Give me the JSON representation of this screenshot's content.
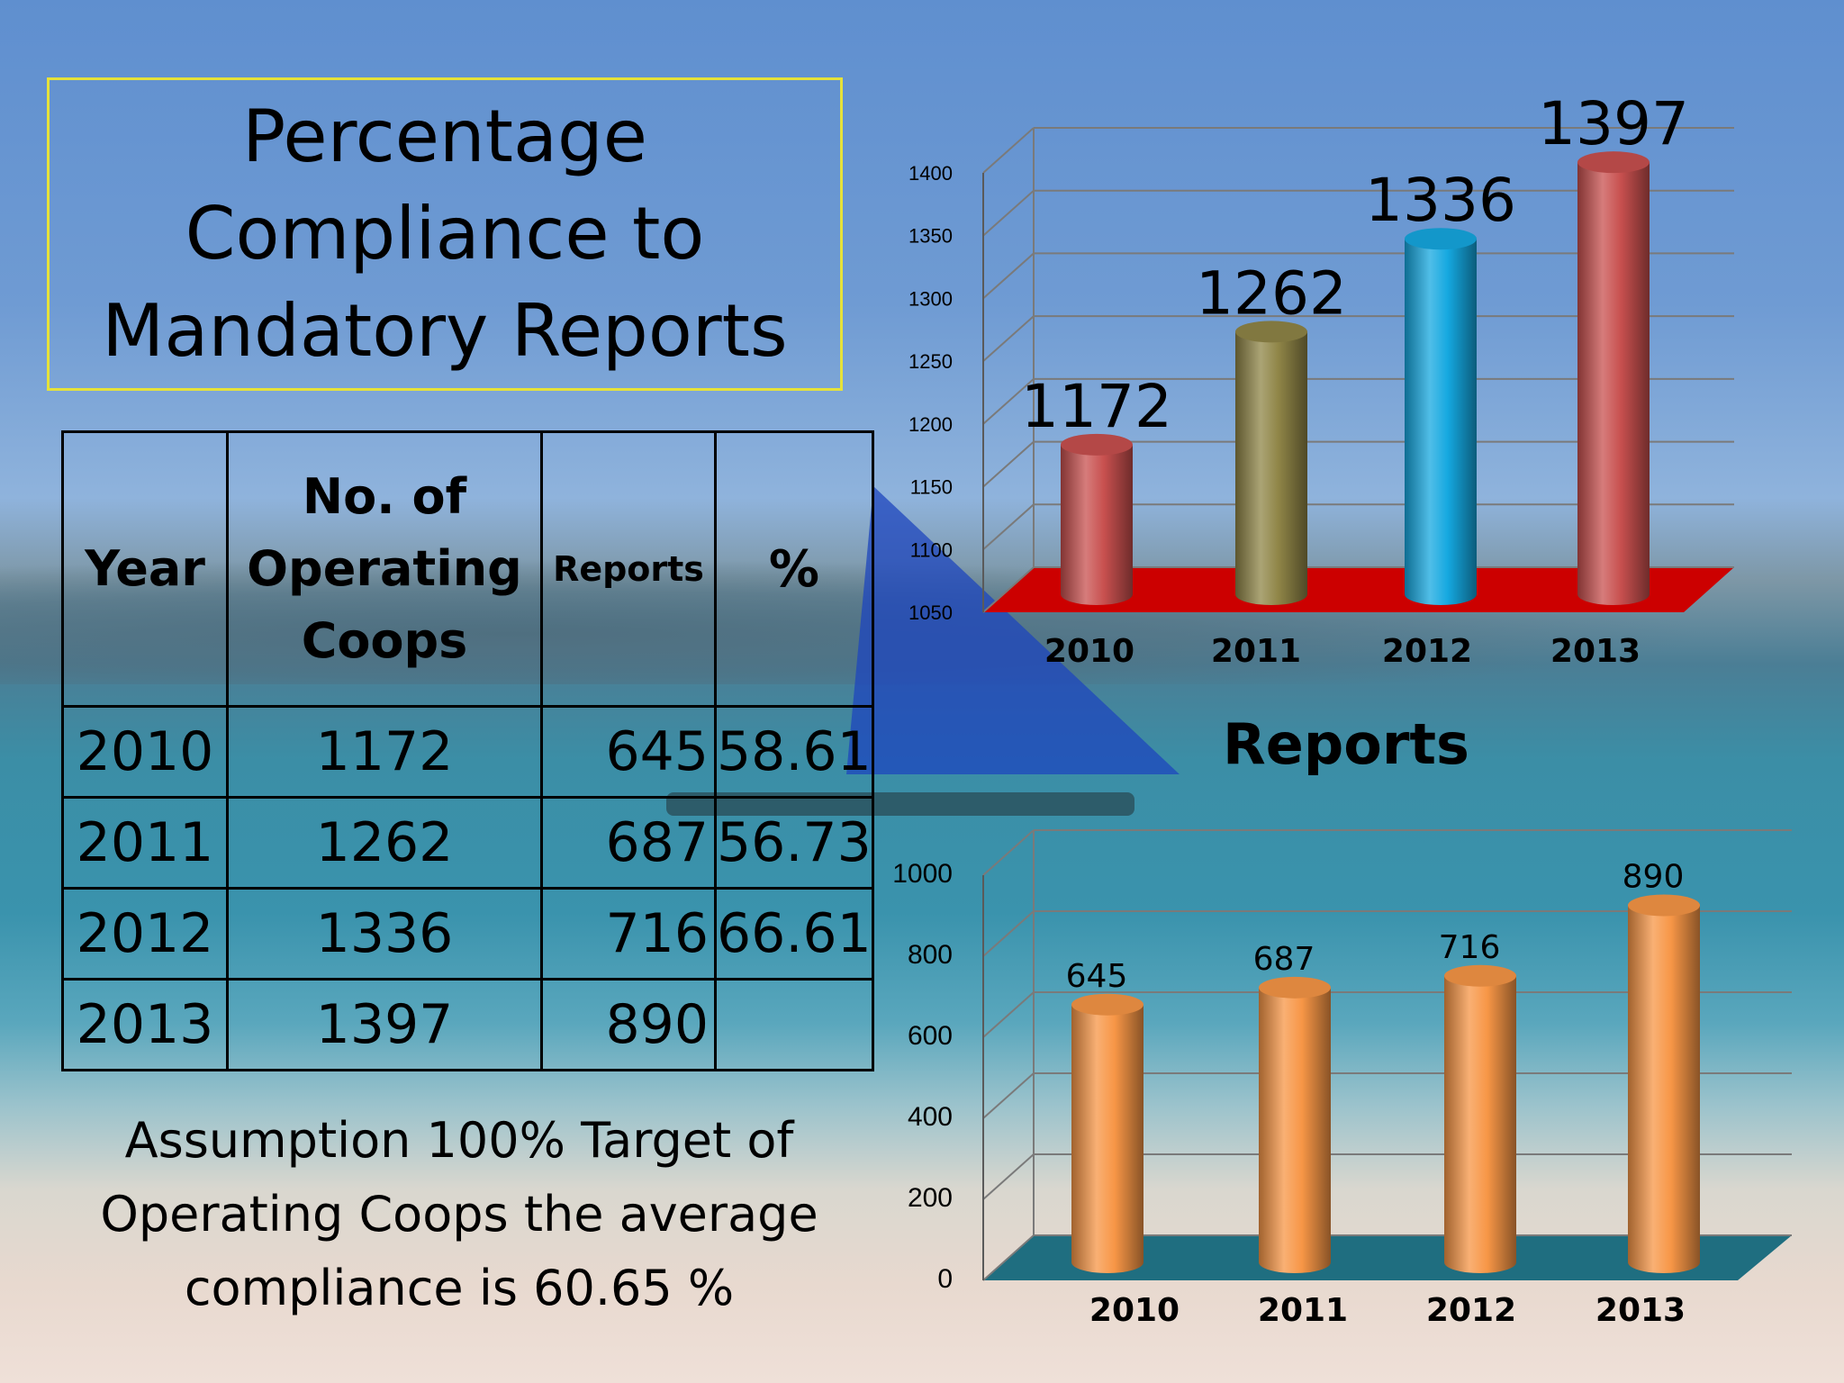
{
  "title": "Percentage Compliance to Mandatory Reports",
  "table": {
    "headers": [
      "Year",
      "No. of Operating Coops",
      "Reports",
      "%"
    ],
    "rows": [
      [
        "2010",
        "1172",
        "645",
        "58.61"
      ],
      [
        "2011",
        "1262",
        "687",
        "56.73"
      ],
      [
        "2012",
        "1336",
        "716",
        "66.61"
      ],
      [
        "2013",
        "1397",
        "890",
        ""
      ]
    ]
  },
  "note": "Assumption 100% Target of Operating Coops the average compliance is 60.65 %",
  "colors": {
    "floor1": "#cc0000",
    "floor2": "#1f6e80",
    "bar_red": "#c8504f",
    "bar_olive": "#8f8547",
    "bar_blue": "#15a8e0",
    "bar_orange": "#f79646",
    "title_border": "#e6e23a"
  },
  "chart_data": [
    {
      "type": "bar",
      "title": "",
      "categories": [
        "2010",
        "2011",
        "2012",
        "2013"
      ],
      "values": [
        1172,
        1262,
        1336,
        1397
      ],
      "ylim": [
        1050,
        1400
      ],
      "yticks": [
        "1050",
        "1100",
        "1150",
        "1200",
        "1250",
        "1300",
        "1350",
        "1400"
      ],
      "data_labels": [
        "1172",
        "1262",
        "1336",
        "1397"
      ],
      "bar_colors": [
        "#c8504f",
        "#8f8547",
        "#15a8e0",
        "#c8504f"
      ],
      "xlabel": "",
      "ylabel": "",
      "grid": true
    },
    {
      "type": "bar",
      "title": "Reports",
      "categories": [
        "2010",
        "2011",
        "2012",
        "2013"
      ],
      "values": [
        645,
        687,
        716,
        890
      ],
      "ylim": [
        0,
        1000
      ],
      "yticks": [
        "0",
        "200",
        "400",
        "600",
        "800",
        "1000"
      ],
      "data_labels": [
        "645",
        "687",
        "716",
        "890"
      ],
      "bar_colors": [
        "#f79646",
        "#f79646",
        "#f79646",
        "#f79646"
      ],
      "xlabel": "",
      "ylabel": "",
      "grid": true
    }
  ]
}
